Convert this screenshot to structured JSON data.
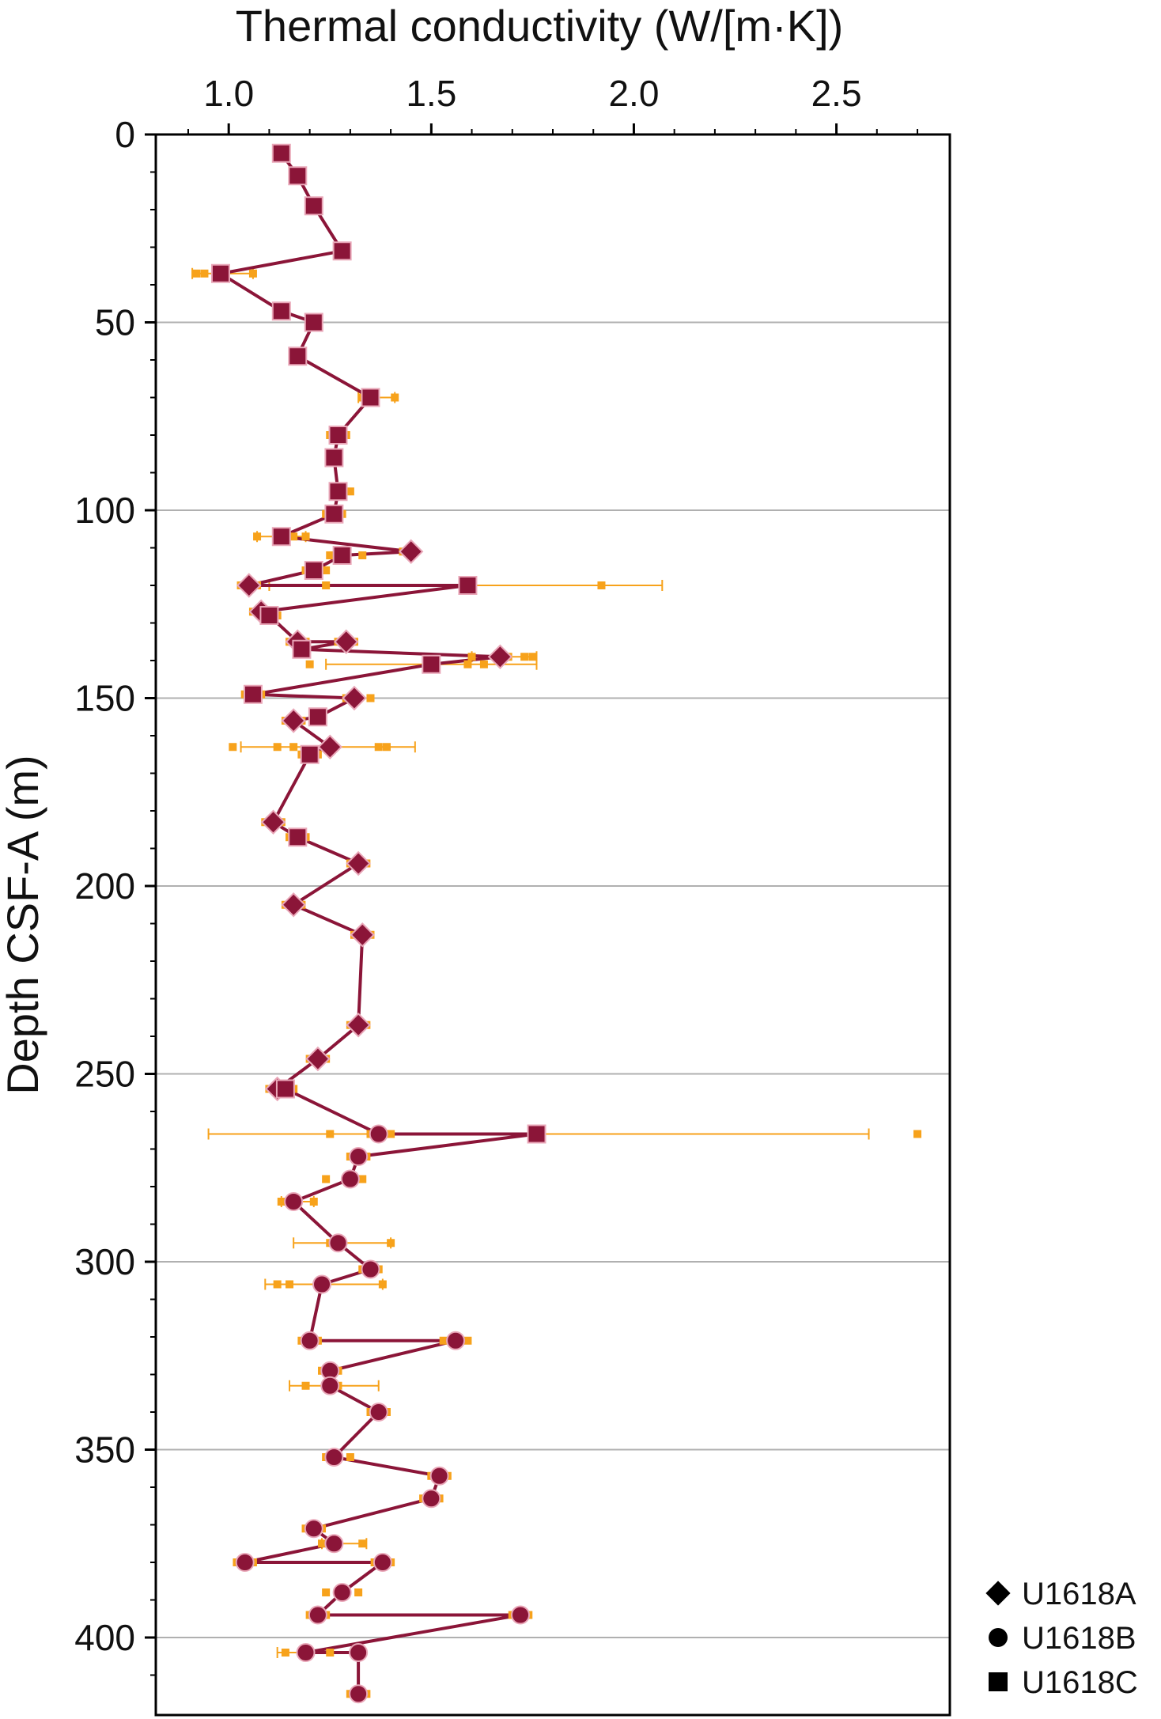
{
  "chart_data": {
    "type": "scatter",
    "xlabel": "Thermal conductivity (W/[m·K])",
    "ylabel": "Depth CSF-A (m)",
    "xlim": [
      0.82,
      2.78
    ],
    "ylim": [
      0,
      420
    ],
    "y_inverted": true,
    "x_axis_position": "top",
    "xticks": [
      "1.0",
      "1.5",
      "2.0",
      "2.5"
    ],
    "yticks": [
      "0",
      "50",
      "100",
      "150",
      "200",
      "250",
      "300",
      "350",
      "400"
    ],
    "grid": "horizontal",
    "legend_position": "bottom-right",
    "colors": {
      "line": "#8b1538",
      "raw": "#f7a21b",
      "grid": "#b0b0b0",
      "axis": "#000000"
    },
    "series": [
      {
        "name": "U1618A",
        "marker": "diamond",
        "points": [
          [
            1.45,
            111
          ],
          [
            1.05,
            120
          ],
          [
            1.08,
            127
          ],
          [
            1.17,
            135
          ],
          [
            1.29,
            135
          ],
          [
            1.67,
            139
          ],
          [
            1.31,
            150
          ],
          [
            1.16,
            156
          ],
          [
            1.25,
            163
          ],
          [
            1.11,
            183
          ],
          [
            1.32,
            194
          ],
          [
            1.16,
            205
          ],
          [
            1.33,
            213
          ],
          [
            1.32,
            237
          ],
          [
            1.22,
            246
          ],
          [
            1.12,
            254
          ]
        ]
      },
      {
        "name": "U1618B",
        "marker": "circle",
        "points": [
          [
            1.37,
            266
          ],
          [
            1.32,
            272
          ],
          [
            1.3,
            278
          ],
          [
            1.16,
            284
          ],
          [
            1.27,
            295
          ],
          [
            1.35,
            302
          ],
          [
            1.23,
            306
          ],
          [
            1.2,
            321
          ],
          [
            1.56,
            321
          ],
          [
            1.25,
            329
          ],
          [
            1.25,
            333
          ],
          [
            1.37,
            340
          ],
          [
            1.26,
            352
          ],
          [
            1.52,
            357
          ],
          [
            1.5,
            363
          ],
          [
            1.21,
            371
          ],
          [
            1.26,
            375
          ],
          [
            1.04,
            380
          ],
          [
            1.38,
            380
          ],
          [
            1.28,
            388
          ],
          [
            1.22,
            394
          ],
          [
            1.72,
            394
          ],
          [
            1.19,
            404
          ],
          [
            1.32,
            404
          ],
          [
            1.32,
            415
          ]
        ]
      },
      {
        "name": "U1618C",
        "marker": "square",
        "points": [
          [
            1.13,
            5
          ],
          [
            1.17,
            11
          ],
          [
            1.21,
            19
          ],
          [
            1.28,
            31
          ],
          [
            0.98,
            37
          ],
          [
            1.13,
            47
          ],
          [
            1.21,
            50
          ],
          [
            1.17,
            59
          ],
          [
            1.35,
            70
          ],
          [
            1.27,
            80
          ],
          [
            1.26,
            86
          ],
          [
            1.27,
            95
          ],
          [
            1.26,
            101
          ],
          [
            1.13,
            107
          ],
          [
            1.28,
            112
          ],
          [
            1.21,
            116
          ],
          [
            1.59,
            120
          ],
          [
            1.1,
            128
          ],
          [
            1.18,
            137
          ],
          [
            1.5,
            141
          ],
          [
            1.06,
            149
          ],
          [
            1.22,
            155
          ],
          [
            1.2,
            165
          ],
          [
            1.17,
            187
          ],
          [
            1.14,
            254
          ],
          [
            1.76,
            266
          ]
        ]
      }
    ],
    "trend_line": [
      [
        1.13,
        5
      ],
      [
        1.17,
        11
      ],
      [
        1.21,
        19
      ],
      [
        1.28,
        31
      ],
      [
        0.98,
        37
      ],
      [
        1.13,
        47
      ],
      [
        1.21,
        50
      ],
      [
        1.17,
        59
      ],
      [
        1.35,
        70
      ],
      [
        1.27,
        80
      ],
      [
        1.26,
        86
      ],
      [
        1.27,
        95
      ],
      [
        1.26,
        101
      ],
      [
        1.13,
        107
      ],
      [
        1.45,
        111
      ],
      [
        1.28,
        112
      ],
      [
        1.21,
        116
      ],
      [
        1.05,
        120
      ],
      [
        1.59,
        120
      ],
      [
        1.08,
        127
      ],
      [
        1.1,
        128
      ],
      [
        1.17,
        135
      ],
      [
        1.29,
        135
      ],
      [
        1.18,
        137
      ],
      [
        1.67,
        139
      ],
      [
        1.5,
        141
      ],
      [
        1.06,
        149
      ],
      [
        1.31,
        150
      ],
      [
        1.22,
        155
      ],
      [
        1.16,
        156
      ],
      [
        1.25,
        163
      ],
      [
        1.2,
        165
      ],
      [
        1.11,
        183
      ],
      [
        1.17,
        187
      ],
      [
        1.32,
        194
      ],
      [
        1.16,
        205
      ],
      [
        1.33,
        213
      ],
      [
        1.32,
        237
      ],
      [
        1.22,
        246
      ],
      [
        1.12,
        254
      ],
      [
        1.14,
        254
      ],
      [
        1.37,
        266
      ],
      [
        1.76,
        266
      ],
      [
        1.32,
        272
      ],
      [
        1.3,
        278
      ],
      [
        1.16,
        284
      ],
      [
        1.27,
        295
      ],
      [
        1.35,
        302
      ],
      [
        1.23,
        306
      ],
      [
        1.2,
        321
      ],
      [
        1.56,
        321
      ],
      [
        1.25,
        329
      ],
      [
        1.25,
        333
      ],
      [
        1.37,
        340
      ],
      [
        1.26,
        352
      ],
      [
        1.52,
        357
      ],
      [
        1.5,
        363
      ],
      [
        1.21,
        371
      ],
      [
        1.26,
        375
      ],
      [
        1.04,
        380
      ],
      [
        1.38,
        380
      ],
      [
        1.28,
        388
      ],
      [
        1.22,
        394
      ],
      [
        1.72,
        394
      ],
      [
        1.19,
        404
      ],
      [
        1.32,
        404
      ],
      [
        1.32,
        415
      ]
    ],
    "raw_measurements": [
      [
        1.13,
        5
      ],
      [
        1.17,
        11
      ],
      [
        1.21,
        19
      ],
      [
        1.28,
        31
      ],
      [
        0.92,
        37
      ],
      [
        0.94,
        37
      ],
      [
        1.06,
        37
      ],
      [
        1.13,
        47
      ],
      [
        1.21,
        50
      ],
      [
        1.17,
        59
      ],
      [
        1.33,
        70
      ],
      [
        1.41,
        70
      ],
      [
        1.25,
        80
      ],
      [
        1.29,
        80
      ],
      [
        1.25,
        86
      ],
      [
        1.27,
        86
      ],
      [
        1.26,
        95
      ],
      [
        1.3,
        95
      ],
      [
        1.24,
        101
      ],
      [
        1.28,
        101
      ],
      [
        1.07,
        107
      ],
      [
        1.16,
        107
      ],
      [
        1.19,
        107
      ],
      [
        1.43,
        111
      ],
      [
        1.46,
        111
      ],
      [
        1.25,
        112
      ],
      [
        1.33,
        112
      ],
      [
        1.19,
        116
      ],
      [
        1.24,
        116
      ],
      [
        1.03,
        120
      ],
      [
        1.07,
        120
      ],
      [
        1.24,
        120
      ],
      [
        1.92,
        120
      ],
      [
        1.06,
        127
      ],
      [
        1.1,
        127
      ],
      [
        1.08,
        128
      ],
      [
        1.12,
        128
      ],
      [
        1.15,
        135
      ],
      [
        1.19,
        135
      ],
      [
        1.27,
        135
      ],
      [
        1.31,
        135
      ],
      [
        1.6,
        139
      ],
      [
        1.69,
        139
      ],
      [
        1.73,
        139
      ],
      [
        1.75,
        139
      ],
      [
        1.2,
        141
      ],
      [
        1.59,
        141
      ],
      [
        1.63,
        141
      ],
      [
        1.04,
        149
      ],
      [
        1.08,
        149
      ],
      [
        1.29,
        150
      ],
      [
        1.35,
        150
      ],
      [
        1.14,
        156
      ],
      [
        1.18,
        156
      ],
      [
        1.01,
        163
      ],
      [
        1.12,
        163
      ],
      [
        1.16,
        163
      ],
      [
        1.37,
        163
      ],
      [
        1.39,
        163
      ],
      [
        1.18,
        165
      ],
      [
        1.22,
        165
      ],
      [
        1.09,
        183
      ],
      [
        1.13,
        183
      ],
      [
        1.15,
        187
      ],
      [
        1.19,
        187
      ],
      [
        1.3,
        194
      ],
      [
        1.34,
        194
      ],
      [
        1.14,
        205
      ],
      [
        1.18,
        205
      ],
      [
        1.31,
        213
      ],
      [
        1.35,
        213
      ],
      [
        1.3,
        237
      ],
      [
        1.34,
        237
      ],
      [
        1.2,
        246
      ],
      [
        1.24,
        246
      ],
      [
        1.1,
        254
      ],
      [
        1.16,
        254
      ],
      [
        1.25,
        266
      ],
      [
        1.35,
        266
      ],
      [
        1.4,
        266
      ],
      [
        2.7,
        266
      ],
      [
        1.3,
        272
      ],
      [
        1.34,
        272
      ],
      [
        1.24,
        278
      ],
      [
        1.33,
        278
      ],
      [
        1.13,
        284
      ],
      [
        1.21,
        284
      ],
      [
        1.25,
        295
      ],
      [
        1.4,
        295
      ],
      [
        1.33,
        302
      ],
      [
        1.37,
        302
      ],
      [
        1.12,
        306
      ],
      [
        1.15,
        306
      ],
      [
        1.38,
        306
      ],
      [
        1.18,
        321
      ],
      [
        1.22,
        321
      ],
      [
        1.53,
        321
      ],
      [
        1.59,
        321
      ],
      [
        1.23,
        329
      ],
      [
        1.27,
        329
      ],
      [
        1.19,
        333
      ],
      [
        1.27,
        333
      ],
      [
        1.35,
        340
      ],
      [
        1.39,
        340
      ],
      [
        1.24,
        352
      ],
      [
        1.3,
        352
      ],
      [
        1.5,
        357
      ],
      [
        1.54,
        357
      ],
      [
        1.48,
        363
      ],
      [
        1.52,
        363
      ],
      [
        1.19,
        371
      ],
      [
        1.23,
        371
      ],
      [
        1.23,
        375
      ],
      [
        1.33,
        375
      ],
      [
        1.02,
        380
      ],
      [
        1.06,
        380
      ],
      [
        1.36,
        380
      ],
      [
        1.4,
        380
      ],
      [
        1.24,
        388
      ],
      [
        1.32,
        388
      ],
      [
        1.2,
        394
      ],
      [
        1.24,
        394
      ],
      [
        1.7,
        394
      ],
      [
        1.74,
        394
      ],
      [
        1.14,
        404
      ],
      [
        1.25,
        404
      ],
      [
        1.32,
        404
      ],
      [
        1.3,
        415
      ],
      [
        1.34,
        415
      ]
    ],
    "error_bars": [
      {
        "y": 37,
        "low": 0.91,
        "high": 1.06
      },
      {
        "y": 70,
        "low": 1.32,
        "high": 1.41
      },
      {
        "y": 107,
        "low": 1.07,
        "high": 1.19
      },
      {
        "y": 120,
        "low": 1.1,
        "high": 2.07
      },
      {
        "y": 139,
        "low": 1.6,
        "high": 1.76
      },
      {
        "y": 141,
        "low": 1.24,
        "high": 1.76
      },
      {
        "y": 163,
        "low": 1.03,
        "high": 1.46
      },
      {
        "y": 266,
        "low": 0.95,
        "high": 2.58
      },
      {
        "y": 284,
        "low": 1.13,
        "high": 1.21
      },
      {
        "y": 295,
        "low": 1.16,
        "high": 1.4
      },
      {
        "y": 306,
        "low": 1.09,
        "high": 1.38
      },
      {
        "y": 333,
        "low": 1.15,
        "high": 1.37
      },
      {
        "y": 375,
        "low": 1.23,
        "high": 1.34
      },
      {
        "y": 404,
        "low": 1.12,
        "high": 1.33
      }
    ],
    "legend": [
      {
        "label": "U1618A",
        "marker": "diamond"
      },
      {
        "label": "U1618B",
        "marker": "circle"
      },
      {
        "label": "U1618C",
        "marker": "square"
      }
    ]
  }
}
